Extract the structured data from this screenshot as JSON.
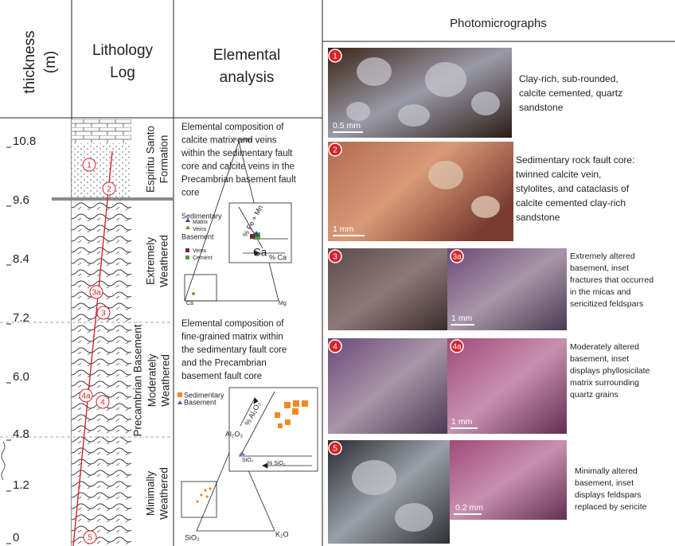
{
  "header": {
    "thickness": [
      "thickness",
      "(m)"
    ],
    "lithology": [
      "Lithology",
      "Log"
    ],
    "elemental": [
      "Elemental",
      "analysis"
    ],
    "photomicrographs": "Photomicrographs"
  },
  "thickness_labels": [
    "10.8",
    "9.6",
    "8.4",
    "7.2",
    "6.0",
    "4.8",
    "1.2",
    "0"
  ],
  "lithology_units": {
    "formation": [
      "Espiritu Santo",
      "Formation"
    ],
    "extremely": [
      "Extremely",
      "Weathered"
    ],
    "basement": "Precambrian Basement",
    "moderately": [
      "Moderately",
      "Weathered"
    ],
    "minimally": [
      "Minimally",
      "Weathered"
    ]
  },
  "samples": [
    "1",
    "2",
    "3a",
    "3",
    "4a",
    "4",
    "5"
  ],
  "elemental": {
    "calcite": {
      "description": [
        "Elemental composition of",
        "calcite matrix and veins",
        "within the sedimentary fault",
        "core and calcite veins in the",
        "Precambrian basement fault",
        "core"
      ],
      "legend": [
        "Sedimentary",
        "Matrix",
        "Veins",
        "Basement",
        "Veins",
        "Cement"
      ],
      "apices": [
        "Fe+Mn",
        "Ca",
        "Mg"
      ],
      "inset_apex": "Ca",
      "inset_axes": [
        "% Fe + Mn",
        "% Ca"
      ]
    },
    "matrix": {
      "description": [
        "Elemental composition of",
        "fine-grained matrix within",
        "the sedimentary fault core",
        "and the Precambrian",
        "basement fault core"
      ],
      "legend": [
        "Sedimentary",
        "Basement"
      ],
      "apices": [
        "Al₂O₃",
        "SiO₂",
        "K₂O"
      ],
      "inset_axes": [
        "% Al₂O₃",
        "SiO₂",
        "% SiO₂"
      ]
    }
  },
  "photos": [
    {
      "id": "1",
      "scale": "0.5 mm",
      "caption": [
        "Clay-rich, sub-rounded,",
        "calcite cemented, quartz",
        "sandstone"
      ]
    },
    {
      "id": "2",
      "scale": "1 mm",
      "caption": [
        "Sedimentary rock fault core:",
        "twinned calcite vein,",
        "stylolites, and cataclasis of",
        "calcite cemented clay-rich",
        "sandstone"
      ]
    },
    {
      "id": "3",
      "inset": "3a",
      "scale": "1 mm",
      "caption": [
        "Extremely altered",
        "basement, inset",
        "fractures that occurred",
        "in the micas and",
        "sericitized feldspars"
      ]
    },
    {
      "id": "4",
      "inset": "4a",
      "scale": "1 mm",
      "caption": [
        "Moderately altered",
        "basement, inset",
        "displays phyllosicilate",
        "matrix surrounding",
        "quartz grains"
      ]
    },
    {
      "id": "5",
      "scale": "0.2 mm",
      "caption": [
        "Minimally altered",
        "basement, inset",
        "displays feldspars",
        "replaced by sericite"
      ]
    }
  ]
}
